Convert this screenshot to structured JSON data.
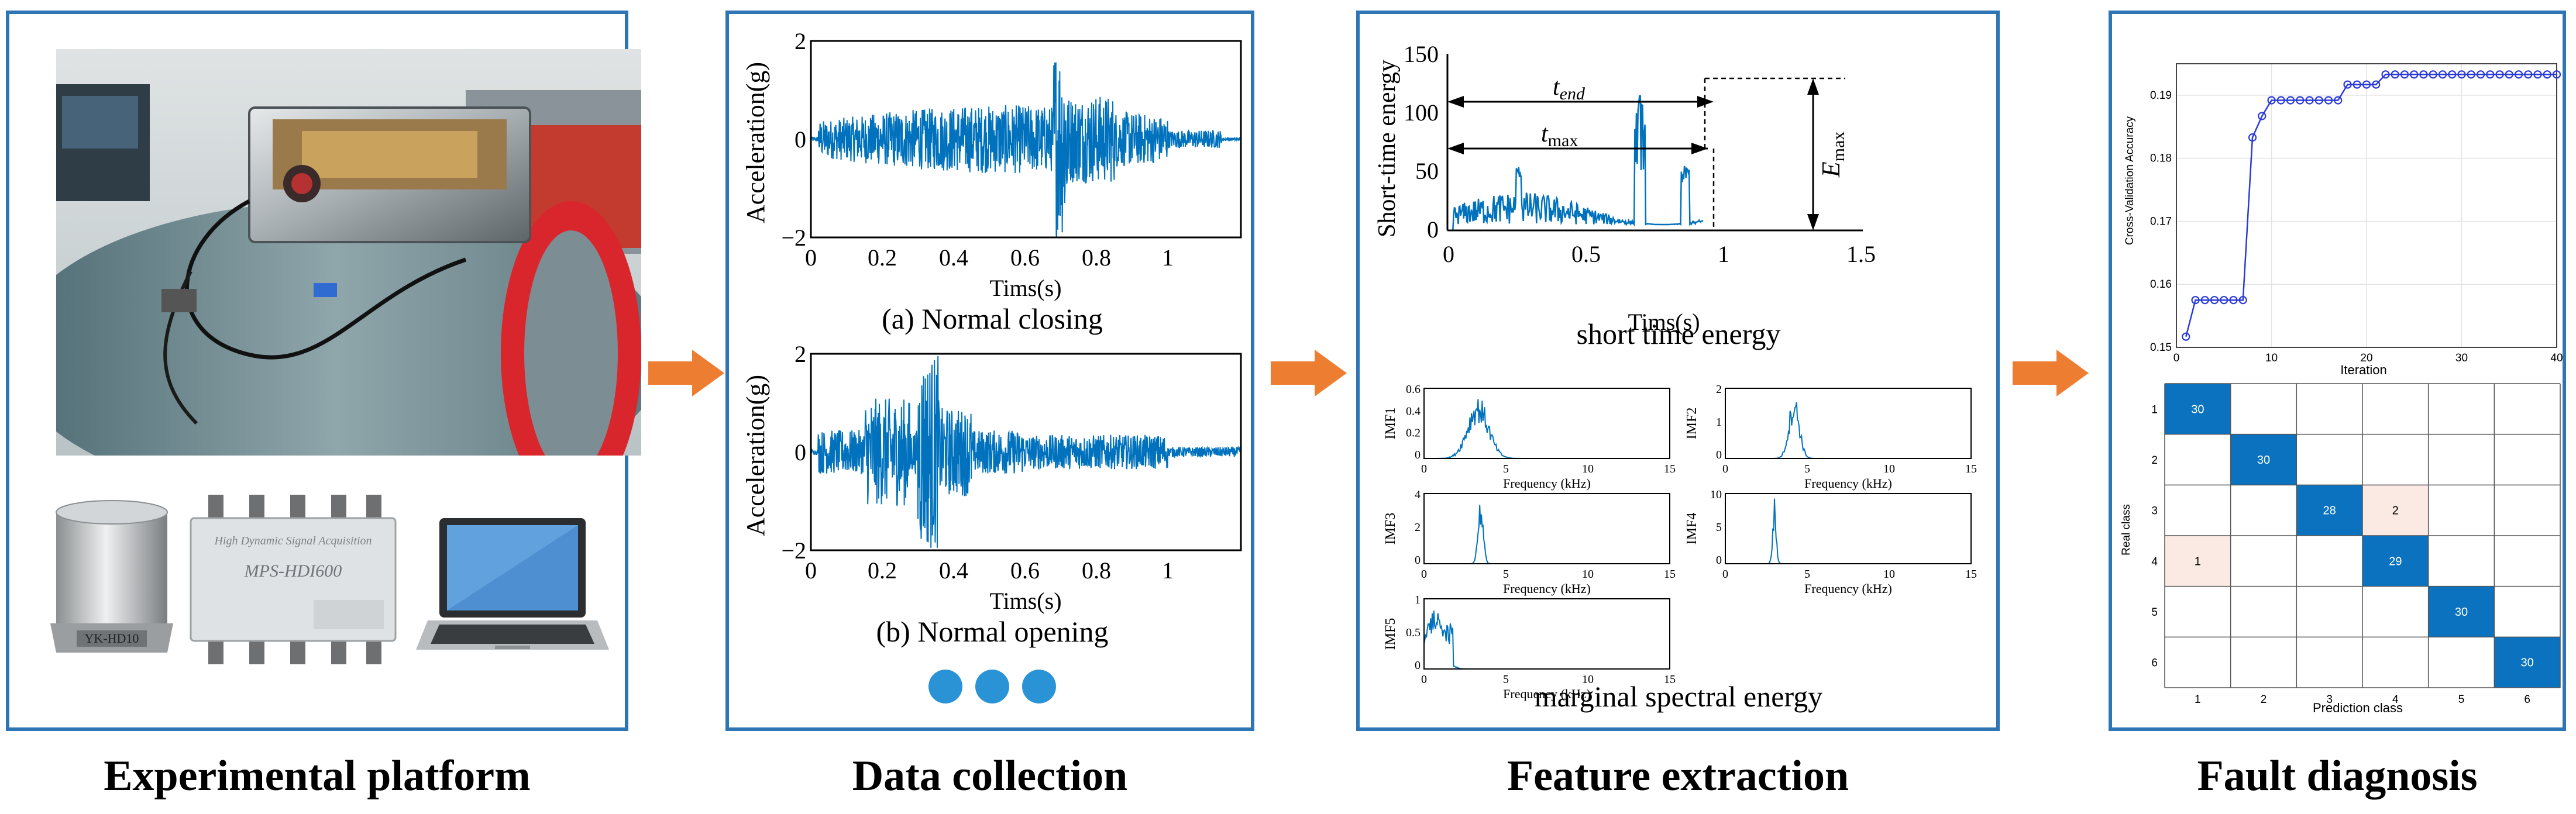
{
  "colors": {
    "accent": "#2e75b6",
    "arrow": "#ed7d31",
    "signal": "#0072bd",
    "matrix_dark": "#0b72bf",
    "matrix_light": "#fbeae4"
  },
  "stages": [
    {
      "label": "Experimental platform"
    },
    {
      "label": "Data collection"
    },
    {
      "label": "Feature extraction"
    },
    {
      "label": "Fault diagnosis"
    }
  ],
  "platform": {
    "device_text": "MPS-HDI600",
    "device_subtitle": "High Dynamic Signal Acquisition",
    "sensor_text": "YK-HD10"
  },
  "data_collection": {
    "plot_a": {
      "ylabel": "Acceleration(g)",
      "xlabel": "Tims(s)",
      "caption": "(a) Normal closing",
      "yticks": [
        "2",
        "0",
        "−2"
      ],
      "xticks": [
        "0",
        "0.2",
        "0.4",
        "0.6",
        "0.8",
        "1"
      ]
    },
    "plot_b": {
      "ylabel": "Acceleration(g)",
      "xlabel": "Tims(s)",
      "caption": "(b) Normal opening",
      "yticks": [
        "2",
        "0",
        "−2"
      ],
      "xticks": [
        "0",
        "0.2",
        "0.4",
        "0.6",
        "0.8",
        "1"
      ]
    },
    "dots_icon": "ellipsis-dots-icon"
  },
  "feature_extraction": {
    "energy": {
      "ylabel": "Short-time energy",
      "xlabel": "Tims(s)",
      "caption": "short time energy",
      "yticks": [
        "150",
        "100",
        "50",
        "0"
      ],
      "xticks": [
        "0",
        "0.5",
        "1",
        "1.5"
      ],
      "t_end": "t",
      "t_end_sub": "end",
      "t_max": "t",
      "t_max_sub": "max",
      "e_max": "E",
      "e_max_sub": "max"
    },
    "imf": {
      "caption": "marginal spectral energy",
      "xlabel": "Frequency (kHz)",
      "xticks": [
        "0",
        "5",
        "10",
        "15"
      ],
      "plots": [
        {
          "label": "IMF1",
          "yticks": [
            "0.6",
            "0.4",
            "0.2",
            "0"
          ]
        },
        {
          "label": "IMF2",
          "yticks": [
            "2",
            "1",
            "0"
          ]
        },
        {
          "label": "IMF3",
          "yticks": [
            "4",
            "2",
            "0"
          ]
        },
        {
          "label": "IMF4",
          "yticks": [
            "10",
            "5",
            "0"
          ]
        },
        {
          "label": "IMF5",
          "yticks": [
            "1",
            "0.5",
            "0"
          ]
        }
      ]
    }
  },
  "fault_diagnosis": {
    "accuracy": {
      "ylabel": "Cross-Validation Accuracy",
      "xlabel": "Iteration",
      "yticks": [
        "0.19",
        "0.18",
        "0.17",
        "0.16",
        "0.15"
      ],
      "xticks": [
        "0",
        "10",
        "20",
        "30",
        "40"
      ]
    },
    "confusion": {
      "ylabel": "Real class",
      "xlabel": "Prediction class",
      "classes": [
        "1",
        "2",
        "3",
        "4",
        "5",
        "6"
      ],
      "cells": [
        {
          "r": 0,
          "c": 0,
          "v": "30",
          "dark": true
        },
        {
          "r": 1,
          "c": 1,
          "v": "30",
          "dark": true
        },
        {
          "r": 2,
          "c": 2,
          "v": "28",
          "dark": true
        },
        {
          "r": 2,
          "c": 3,
          "v": "2",
          "dark": false
        },
        {
          "r": 3,
          "c": 0,
          "v": "1",
          "dark": false
        },
        {
          "r": 3,
          "c": 3,
          "v": "29",
          "dark": true
        },
        {
          "r": 4,
          "c": 4,
          "v": "30",
          "dark": true
        },
        {
          "r": 5,
          "c": 5,
          "v": "30",
          "dark": true
        }
      ]
    }
  },
  "chart_data": [
    {
      "type": "line",
      "title": "",
      "xlabel": "Iteration",
      "ylabel": "Cross-Validation Accuracy",
      "xlim": [
        0,
        40
      ],
      "ylim": [
        0.15,
        0.195
      ],
      "series": [
        {
          "name": "accuracy",
          "values": [
            [
              1,
              0.1517
            ],
            [
              2,
              0.1575
            ],
            [
              3,
              0.1575
            ],
            [
              4,
              0.1575
            ],
            [
              5,
              0.1575
            ],
            [
              6,
              0.1575
            ],
            [
              7,
              0.1575
            ],
            [
              8,
              0.1833
            ],
            [
              9,
              0.1867
            ],
            [
              10,
              0.1892
            ],
            [
              11,
              0.1892
            ],
            [
              12,
              0.1892
            ],
            [
              13,
              0.1892
            ],
            [
              14,
              0.1892
            ],
            [
              15,
              0.1892
            ],
            [
              16,
              0.1892
            ],
            [
              17,
              0.1892
            ],
            [
              18,
              0.1917
            ],
            [
              19,
              0.1917
            ],
            [
              20,
              0.1917
            ],
            [
              21,
              0.1917
            ],
            [
              22,
              0.1933
            ],
            [
              23,
              0.1933
            ],
            [
              24,
              0.1933
            ],
            [
              25,
              0.1933
            ],
            [
              26,
              0.1933
            ],
            [
              27,
              0.1933
            ],
            [
              28,
              0.1933
            ],
            [
              29,
              0.1933
            ],
            [
              30,
              0.1933
            ],
            [
              31,
              0.1933
            ],
            [
              32,
              0.1933
            ],
            [
              33,
              0.1933
            ],
            [
              34,
              0.1933
            ],
            [
              35,
              0.1933
            ],
            [
              36,
              0.1933
            ],
            [
              37,
              0.1933
            ],
            [
              38,
              0.1933
            ],
            [
              39,
              0.1933
            ],
            [
              40,
              0.1933
            ]
          ]
        }
      ]
    },
    {
      "type": "heatmap",
      "xlabel": "Prediction class",
      "ylabel": "Real class",
      "categories": [
        "1",
        "2",
        "3",
        "4",
        "5",
        "6"
      ],
      "values": [
        [
          30,
          0,
          0,
          0,
          0,
          0
        ],
        [
          0,
          30,
          0,
          0,
          0,
          0
        ],
        [
          0,
          0,
          28,
          2,
          0,
          0
        ],
        [
          1,
          0,
          0,
          29,
          0,
          0
        ],
        [
          0,
          0,
          0,
          0,
          30,
          0
        ],
        [
          0,
          0,
          0,
          0,
          0,
          30
        ]
      ]
    }
  ]
}
